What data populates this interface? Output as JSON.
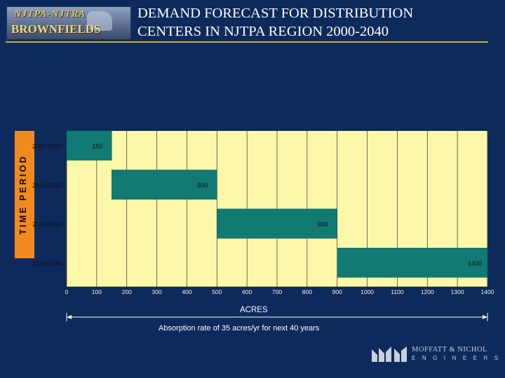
{
  "header": {
    "logo_line1": "NJTPA-NJTRA",
    "logo_line2": "BROWNFIELDS PLANNING",
    "title_line1": "DEMAND FORECAST FOR DISTRIBUTION",
    "title_line2": "CENTERS IN NJTPA REGION 2000-2040"
  },
  "chart_data": {
    "type": "bar",
    "orientation": "horizontal",
    "style": "stacked-gantt (waterfall cumulative)",
    "title": "DEMAND FORECAST FOR DISTRIBUTION CENTERS IN NJTPA REGION 2000-2040",
    "xlabel": "ACRES",
    "ylabel": "TIME PERIOD",
    "categories": [
      "2000-2010",
      "2010-2020",
      "2020-2030",
      "2030-2040"
    ],
    "starts": [
      0,
      150,
      500,
      900
    ],
    "values": [
      150,
      500,
      900,
      1400
    ],
    "value_labels": [
      "150",
      "500",
      "900",
      "1400"
    ],
    "xlim": [
      0,
      1400
    ],
    "xticks": [
      0,
      100,
      200,
      300,
      400,
      500,
      600,
      700,
      800,
      900,
      1000,
      1100,
      1200,
      1300,
      1400
    ],
    "grid": "vertical",
    "colors": {
      "plot_bg": "#fdf7a9",
      "bar": "#117a72",
      "panel": "#f18a1e",
      "page_bg": "#0c2a5c"
    }
  },
  "footnote": "Absorption rate of 35 acres/yr for next 40 years",
  "company": {
    "name": "MOFFATT & NICHOL",
    "sub": "ENGINEERS",
    "logo_icon": "mn-logo-icon"
  }
}
